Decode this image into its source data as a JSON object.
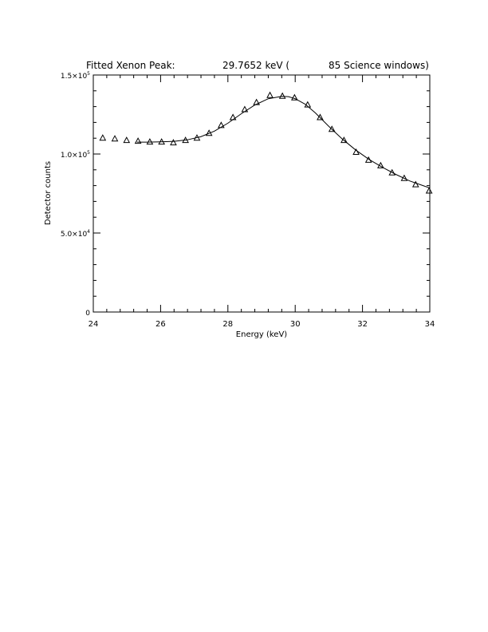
{
  "title": {
    "prefix": "Fitted Xenon Peak:",
    "value": "29.7652 keV (",
    "suffix": "85 Science windows)"
  },
  "chart_data": {
    "type": "scatter",
    "xlabel": "Energy (keV)",
    "ylabel": "Detector counts",
    "xlim": [
      24,
      34
    ],
    "ylim": [
      0,
      150000
    ],
    "x_ticks": [
      24,
      26,
      28,
      30,
      32,
      34
    ],
    "x_tick_labels": [
      "24",
      "26",
      "28",
      "30",
      "32",
      "34"
    ],
    "y_ticks": [
      0,
      50000,
      100000,
      150000
    ],
    "y_tick_labels": [
      {
        "base": "0",
        "exp": ""
      },
      {
        "base": "5.0×10",
        "exp": "4"
      },
      {
        "base": "1.0×10",
        "exp": "5"
      },
      {
        "base": "1.5×10",
        "exp": "5"
      }
    ],
    "grid": false,
    "series": [
      {
        "marker": "triangle",
        "x": [
          24.28,
          24.64,
          24.99,
          25.33,
          25.68,
          26.03,
          26.38,
          26.74,
          27.08,
          27.44,
          27.8,
          28.15,
          28.5,
          28.85,
          29.25,
          29.62,
          29.98,
          30.37,
          30.74,
          31.09,
          31.45,
          31.81,
          32.18,
          32.54,
          32.88,
          33.24,
          33.58,
          33.98
        ],
        "y": [
          110000,
          109500,
          108500,
          108000,
          107500,
          107500,
          107000,
          108500,
          110000,
          113000,
          118000,
          123000,
          128000,
          132500,
          137000,
          136500,
          135500,
          131000,
          123000,
          115500,
          108500,
          101000,
          96000,
          92500,
          88000,
          84500,
          80500,
          76500
        ]
      },
      {
        "style": "line",
        "x": [
          25.3,
          25.6,
          26.0,
          26.4,
          26.8,
          27.2,
          27.6,
          28.0,
          28.4,
          28.8,
          29.2,
          29.6,
          29.8,
          30.0,
          30.3,
          30.6,
          31.0,
          31.4,
          31.8,
          32.2,
          32.6,
          33.0,
          33.4,
          33.8,
          34.0
        ],
        "y": [
          107500,
          107500,
          107700,
          108000,
          109000,
          111000,
          114500,
          119500,
          125500,
          131000,
          135000,
          136500,
          136300,
          135000,
          131500,
          126000,
          117500,
          109500,
          102500,
          96500,
          91500,
          87000,
          83000,
          80000,
          78500
        ]
      }
    ]
  }
}
